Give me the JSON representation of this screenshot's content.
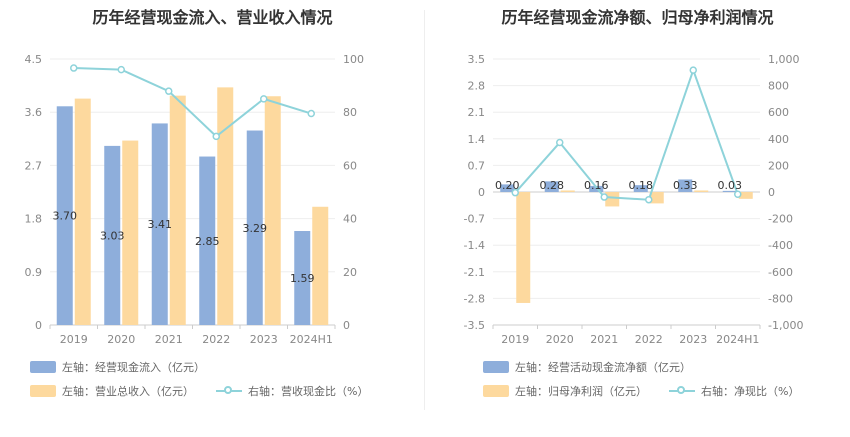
{
  "chart_data": [
    {
      "type": "bar",
      "title": "历年经营现金流入、营业收入情况",
      "categories": [
        "2019",
        "2020",
        "2021",
        "2022",
        "2023",
        "2024H1"
      ],
      "left_axis": {
        "ticks": [
          "0",
          "0.9",
          "1.8",
          "2.7",
          "3.6",
          "4.5"
        ],
        "ylim": [
          0,
          4.5
        ]
      },
      "right_axis": {
        "ticks": [
          "0",
          "20",
          "40",
          "60",
          "80",
          "100"
        ],
        "ylim": [
          0,
          100
        ]
      },
      "series": [
        {
          "name": "左轴：经营现金流入（亿元）",
          "axis": "left",
          "type": "bar",
          "color": "#8eaedb",
          "values": [
            3.7,
            3.03,
            3.41,
            2.85,
            3.29,
            1.59
          ],
          "labels": [
            "3.70",
            "3.03",
            "3.41",
            "2.85",
            "3.29",
            "1.59"
          ]
        },
        {
          "name": "左轴：营业总收入（亿元）",
          "axis": "left",
          "type": "bar",
          "color": "#fdd99e",
          "values": [
            3.83,
            3.12,
            3.88,
            4.02,
            3.87,
            2.0
          ]
        },
        {
          "name": "右轴：营收现金比（%）",
          "axis": "right",
          "type": "line",
          "color": "#8ed3da",
          "values": [
            96.6,
            96.0,
            87.9,
            70.9,
            85.0,
            79.5
          ]
        }
      ]
    },
    {
      "type": "bar",
      "title": "历年经营现金流净额、归母净利润情况",
      "categories": [
        "2019",
        "2020",
        "2021",
        "2022",
        "2023",
        "2024H1"
      ],
      "left_axis": {
        "ticks": [
          "-3.5",
          "-2.8",
          "-2.1",
          "-1.4",
          "-0.7",
          "0",
          "0.7",
          "1.4",
          "2.1",
          "2.8",
          "3.5"
        ],
        "ylim": [
          -3.5,
          3.5
        ]
      },
      "right_axis": {
        "ticks": [
          "-1,000",
          "-800",
          "-600",
          "-400",
          "-200",
          "0",
          "200",
          "400",
          "600",
          "800",
          "1,000"
        ],
        "ylim": [
          -1000,
          1000
        ]
      },
      "series": [
        {
          "name": "左轴：经营活动现金流净额（亿元）",
          "axis": "left",
          "type": "bar",
          "color": "#8eaedb",
          "values": [
            0.2,
            0.28,
            0.16,
            0.18,
            0.33,
            0.03
          ],
          "labels": [
            "0.20",
            "0.28",
            "0.16",
            "0.18",
            "0.33",
            "0.03"
          ]
        },
        {
          "name": "左轴：归母净利润（亿元）",
          "axis": "left",
          "type": "bar",
          "color": "#fdd99e",
          "values": [
            -2.92,
            0.04,
            -0.38,
            -0.3,
            0.04,
            -0.18
          ]
        },
        {
          "name": "右轴：净现比（%）",
          "axis": "right",
          "type": "line",
          "color": "#8ed3da",
          "values": [
            -5,
            372,
            -38,
            -58,
            916,
            -17
          ]
        }
      ]
    }
  ]
}
